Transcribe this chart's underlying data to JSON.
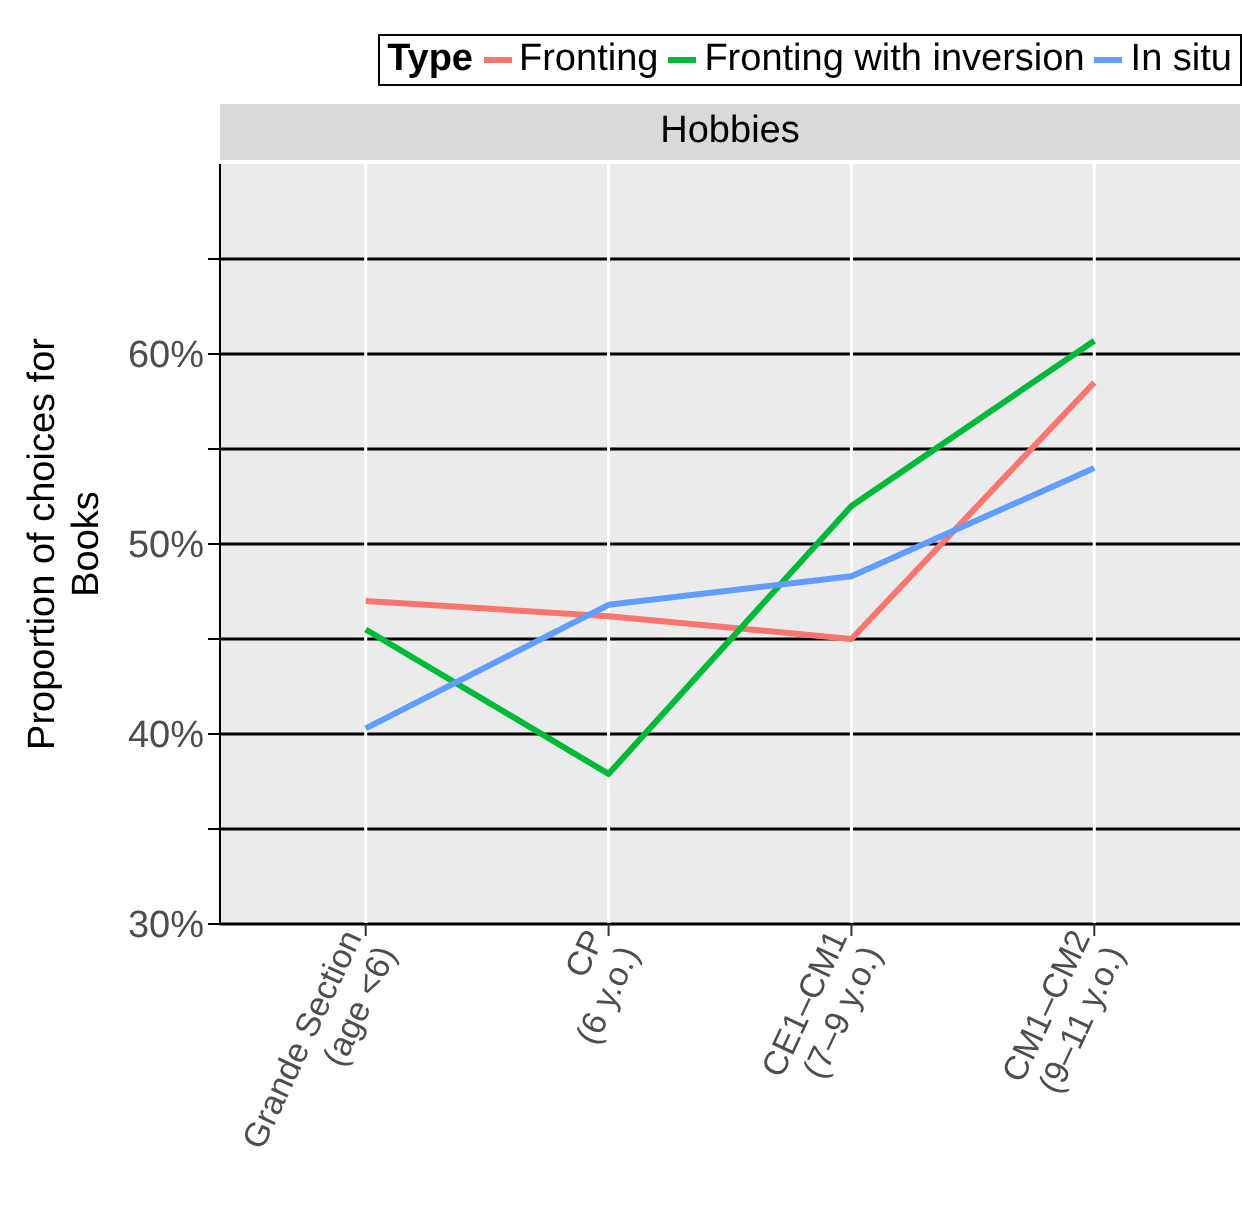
{
  "chart_data": {
    "type": "line",
    "title": "Hobbies",
    "ylabel": "Proportion of choices for\nBooks",
    "legend_title": "Type",
    "legend": "top",
    "categories": [
      "Grande Section\n(age <6)",
      "CP\n(6 y.o.)",
      "CE1–CM1\n(7–9 y.o.)",
      "CM1–CM2\n(9–11 y.o.)"
    ],
    "series": [
      {
        "name": "Fronting",
        "color": "#f8766d",
        "values": [
          47.0,
          46.2,
          45.0,
          58.5
        ]
      },
      {
        "name": "Fronting with inversion",
        "color": "#00ba38",
        "values": [
          45.5,
          37.9,
          52.0,
          60.7
        ]
      },
      {
        "name": "In situ",
        "color": "#619cff",
        "values": [
          40.3,
          46.8,
          48.3,
          54.0
        ]
      }
    ],
    "ylim": [
      30,
      70
    ],
    "yticks": [
      {
        "value": 30,
        "label": "30%"
      },
      {
        "value": 35,
        "label": null
      },
      {
        "value": 40,
        "label": "40%"
      },
      {
        "value": 45,
        "label": null
      },
      {
        "value": 50,
        "label": "50%"
      },
      {
        "value": 55,
        "label": null
      },
      {
        "value": 60,
        "label": "60%"
      },
      {
        "value": 65,
        "label": null
      }
    ],
    "grid": true,
    "line_style": "solid"
  }
}
